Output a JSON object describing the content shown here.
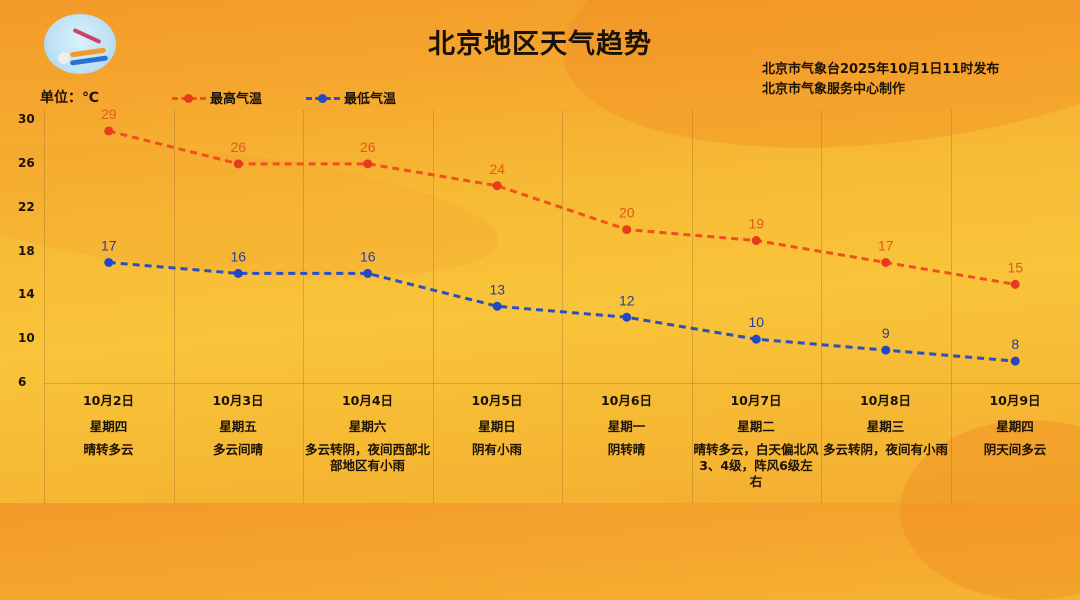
{
  "header": {
    "title": "北京地区天气趋势",
    "publisher_line1": "北京市气象台2025年10月1日11时发布",
    "publisher_line2": "北京市气象服务中心制作",
    "logo": "meteorological-service-logo"
  },
  "unit_label": "单位：℃",
  "colors": {
    "high": "#e83a1e",
    "high_line": "#f0501f",
    "low": "#2447c8",
    "low_line": "#2a4fc0",
    "high_label": "#e05a1c",
    "low_label": "#2a3f9a"
  },
  "chart_data": {
    "type": "line",
    "title": "北京地区天气趋势",
    "xlabel": "",
    "ylabel": "单位：℃",
    "ylim": [
      6,
      30
    ],
    "yticks": [
      30,
      26,
      22,
      18,
      14,
      10,
      6
    ],
    "grid": "vertical",
    "legend_position": "top",
    "categories": [
      "10月2日",
      "10月3日",
      "10月4日",
      "10月5日",
      "10月6日",
      "10月7日",
      "10月8日",
      "10月9日"
    ],
    "series": [
      {
        "name": "最高气温",
        "values": [
          29,
          26,
          26,
          24,
          20,
          19,
          17,
          15
        ]
      },
      {
        "name": "最低气温",
        "values": [
          17,
          16,
          16,
          13,
          12,
          10,
          9,
          8
        ]
      }
    ]
  },
  "legend": {
    "high": "最高气温",
    "low": "最低气温"
  },
  "yticks": [
    "30",
    "26",
    "22",
    "18",
    "14",
    "10",
    "6"
  ],
  "days": [
    {
      "date": "10月2日",
      "weekday": "星期四",
      "weather": "晴转多云"
    },
    {
      "date": "10月3日",
      "weekday": "星期五",
      "weather": "多云间晴"
    },
    {
      "date": "10月4日",
      "weekday": "星期六",
      "weather": "多云转阴，夜间西部北部地区有小雨"
    },
    {
      "date": "10月5日",
      "weekday": "星期日",
      "weather": "阴有小雨"
    },
    {
      "date": "10月6日",
      "weekday": "星期一",
      "weather": "阴转晴"
    },
    {
      "date": "10月7日",
      "weekday": "星期二",
      "weather": "晴转多云，白天偏北风3、4级，阵风6级左右"
    },
    {
      "date": "10月8日",
      "weekday": "星期三",
      "weather": "多云转阴，夜间有小雨"
    },
    {
      "date": "10月9日",
      "weekday": "星期四",
      "weather": "阴天间多云"
    }
  ]
}
